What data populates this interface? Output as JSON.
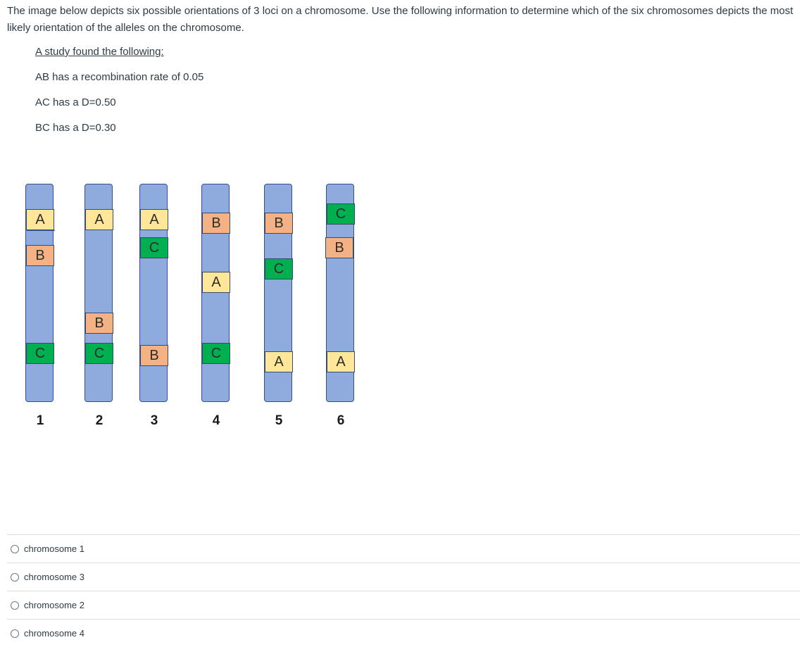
{
  "question": {
    "text": "The image below depicts six possible orientations of 3 loci on a chromosome.  Use the following information to determine which of the six chromosomes depicts the most likely orientation of the alleles on the chromosome."
  },
  "study": {
    "heading": "A study found the following:",
    "lines": [
      "AB has a recombination rate of 0.05",
      "AC has a D=0.50",
      "BC has a D=0.30"
    ]
  },
  "figure": {
    "chromosomes": [
      {
        "number": "1",
        "loci": [
          "A",
          "B",
          "C"
        ]
      },
      {
        "number": "2",
        "loci": [
          "A",
          "B",
          "C"
        ]
      },
      {
        "number": "3",
        "loci": [
          "A",
          "C",
          "B"
        ]
      },
      {
        "number": "4",
        "loci": [
          "B",
          "A",
          "C"
        ]
      },
      {
        "number": "5",
        "loci": [
          "B",
          "C",
          "A"
        ]
      },
      {
        "number": "6",
        "loci": [
          "C",
          "B",
          "A"
        ]
      }
    ]
  },
  "answers": [
    "chromosome 1",
    "chromosome 3",
    "chromosome 2",
    "chromosome 4"
  ],
  "colors": {
    "A": "#ffe699",
    "B": "#f4b183",
    "C": "#00b050",
    "chromosome": "#8faadc"
  }
}
